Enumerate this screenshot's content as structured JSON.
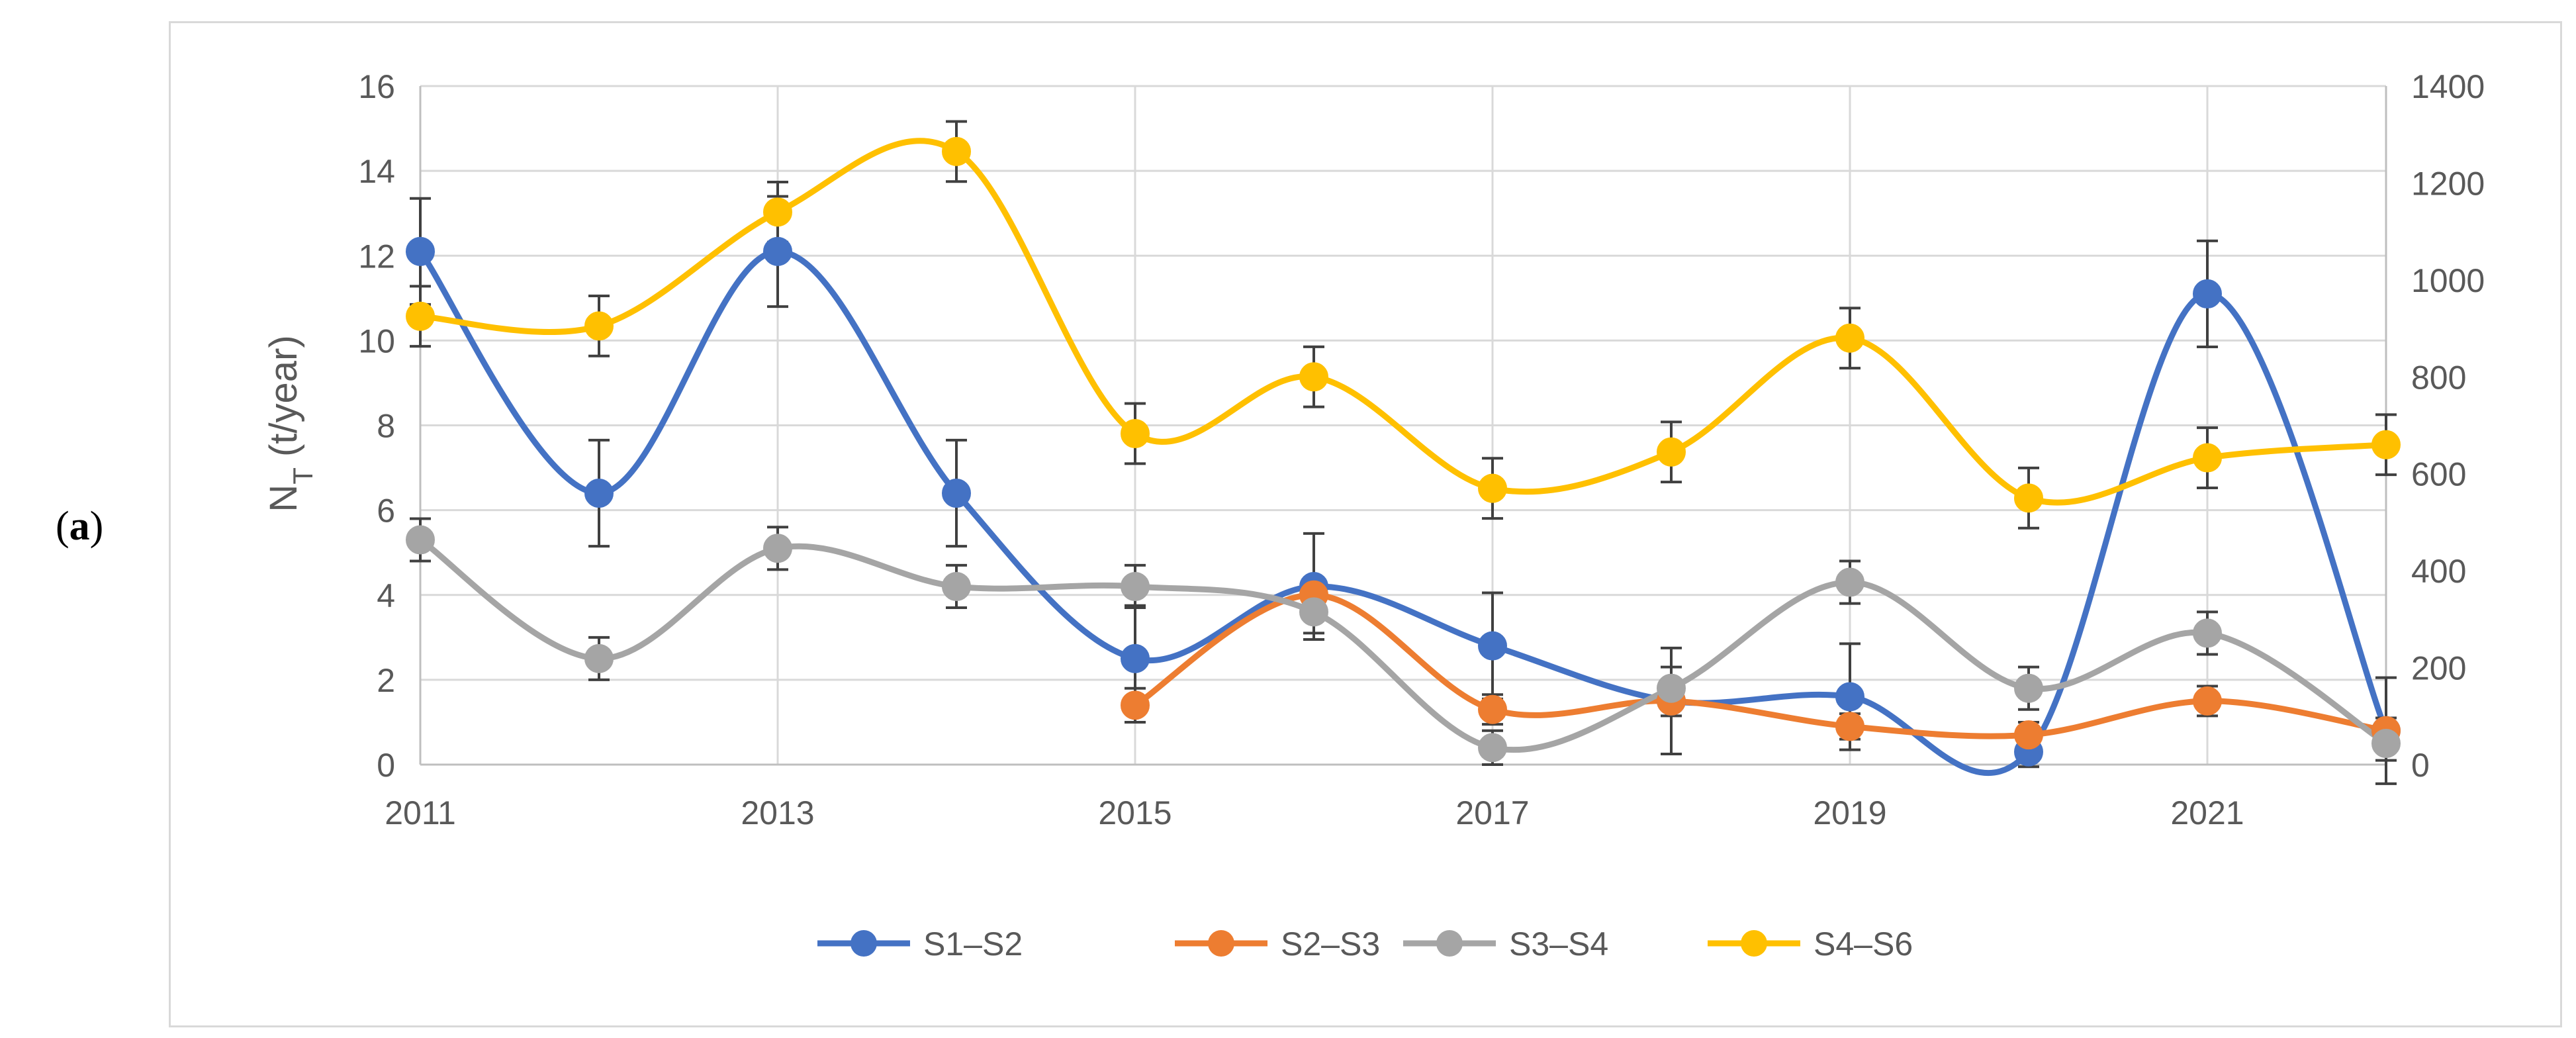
{
  "panel_label": {
    "open": "(",
    "letter": "a",
    "close": ")"
  },
  "chart_data": {
    "type": "line",
    "smooth": true,
    "title": "",
    "xlabel": "",
    "ylabel": {
      "main": "N",
      "sub": "T",
      "unit": " (t/year)"
    },
    "x": [
      2011,
      2012,
      2013,
      2014,
      2015,
      2016,
      2017,
      2018,
      2019,
      2020,
      2021,
      2022
    ],
    "xlim": [
      2011,
      2022
    ],
    "x_tick_labels": [
      "2011",
      "2013",
      "2015",
      "2017",
      "2019",
      "2021"
    ],
    "ylim_left": [
      0,
      16
    ],
    "y_left_ticks": [
      "0",
      "2",
      "4",
      "6",
      "8",
      "10",
      "12",
      "14",
      "16"
    ],
    "ylim_right": [
      0,
      1400
    ],
    "y_right_ticks": [
      "0",
      "200",
      "400",
      "600",
      "800",
      "1000",
      "1200",
      "1400"
    ],
    "grid": true,
    "legend_position": "bottom",
    "series": [
      {
        "name": "S1–S2",
        "axis": "left",
        "color": "#4472C4",
        "values": [
          12.1,
          6.4,
          12.1,
          6.4,
          2.5,
          4.2,
          2.8,
          1.5,
          1.6,
          0.3,
          11.1,
          0.8
        ],
        "error": [
          1.25,
          1.25,
          1.3,
          1.25,
          1.25,
          1.25,
          1.25,
          1.25,
          1.25,
          0.35,
          1.25,
          1.25
        ]
      },
      {
        "name": "S2–S3",
        "axis": "left",
        "color": "#ED7D31",
        "values": [
          null,
          null,
          null,
          null,
          1.4,
          4.0,
          1.3,
          1.5,
          0.9,
          0.7,
          1.5,
          0.8
        ],
        "error": [
          null,
          null,
          null,
          null,
          0.4,
          0.4,
          0.35,
          0.35,
          0.3,
          0.3,
          0.35,
          0.3
        ]
      },
      {
        "name": "S3–S4",
        "axis": "left",
        "color": "#A5A5A5",
        "values": [
          5.3,
          2.5,
          5.1,
          4.2,
          4.2,
          3.6,
          0.4,
          1.8,
          4.3,
          1.8,
          3.1,
          0.5
        ],
        "error": [
          0.5,
          0.5,
          0.5,
          0.5,
          0.5,
          0.5,
          0.4,
          0.5,
          0.5,
          0.5,
          0.5,
          0.4
        ]
      },
      {
        "name": "S4–S6",
        "axis": "right",
        "color": "#FFC000",
        "values": [
          925,
          905,
          1140,
          1265,
          683,
          800,
          570,
          645,
          880,
          550,
          633,
          660
        ],
        "error": [
          62,
          62,
          62,
          62,
          62,
          62,
          62,
          62,
          62,
          62,
          62,
          62
        ]
      }
    ]
  }
}
